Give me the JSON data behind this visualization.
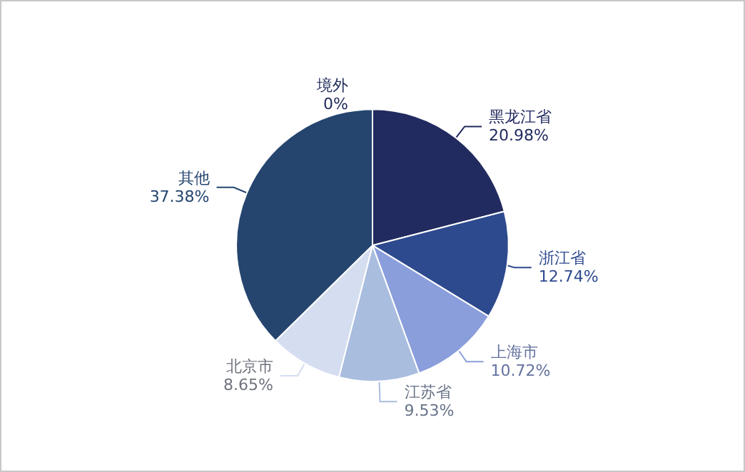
{
  "chart_data": {
    "type": "pie",
    "categories": [
      "境外",
      "黑龙江省",
      "浙江省",
      "上海市",
      "江苏省",
      "北京市",
      "其他"
    ],
    "values": [
      0,
      20.98,
      12.74,
      10.72,
      9.53,
      8.65,
      37.38
    ],
    "colors": [
      "#1f2a5a",
      "#222b5f",
      "#2e4a8e",
      "#8a9edc",
      "#a9bddf",
      "#d5ddf0",
      "#25456f"
    ],
    "value_labels": [
      "0%",
      "20.98%",
      "12.74%",
      "10.72%",
      "9.53%",
      "8.65%",
      "37.38%"
    ],
    "legend": false
  }
}
